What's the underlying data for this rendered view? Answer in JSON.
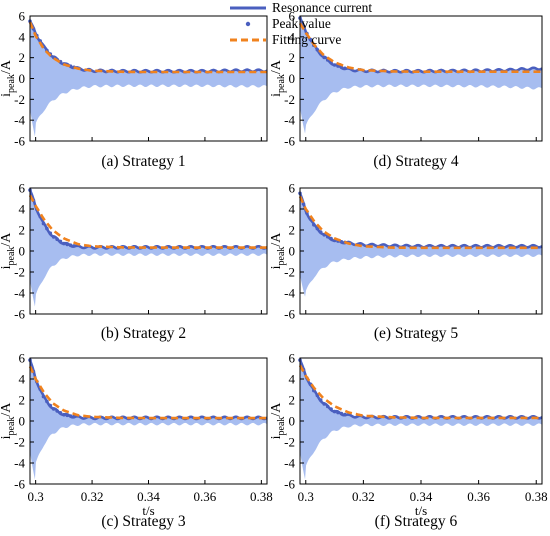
{
  "legend": {
    "items": [
      {
        "label": "Resonance current",
        "style": "line",
        "color": "#4a5fbf"
      },
      {
        "label": "Peak value",
        "style": "dots",
        "color": "#4a5fbf"
      },
      {
        "label": "Fitting curve",
        "style": "dashed",
        "color": "#f0821e"
      }
    ]
  },
  "axis": {
    "ylabel_main": "i",
    "ylabel_sub": "peak",
    "ylabel_unit": "/A",
    "xlabel": "t/s",
    "yticks": [
      "6",
      "4",
      "2",
      "0",
      "-2",
      "-4",
      "-6"
    ],
    "xticks": [
      "0.3",
      "0.32",
      "0.34",
      "0.36",
      "0.38"
    ]
  },
  "colors": {
    "fill": "#a7bdf0",
    "resonance_line": "#4a5fbf",
    "peak_dots": "#4a5fbf",
    "fitting_curve": "#f0821e"
  },
  "chart_data": [
    {
      "type": "line",
      "caption": "(a) Strategy 1",
      "xlim": [
        0.298,
        0.382
      ],
      "ylim": [
        -6,
        6
      ],
      "series": [
        {
          "name": "Resonance current",
          "note": "envelope",
          "x": [
            0.298,
            0.3,
            0.303,
            0.306,
            0.31,
            0.315,
            0.32,
            0.33,
            0.34,
            0.35,
            0.36,
            0.37,
            0.38
          ],
          "y": [
            5.5,
            4.3,
            3.0,
            2.1,
            1.4,
            0.95,
            0.75,
            0.7,
            0.7,
            0.7,
            0.7,
            0.75,
            0.75
          ]
        },
        {
          "name": "Fitting curve",
          "x": [
            0.298,
            0.3,
            0.303,
            0.306,
            0.31,
            0.315,
            0.32,
            0.33,
            0.34,
            0.35,
            0.36,
            0.37,
            0.38
          ],
          "y": [
            5.4,
            4.1,
            2.8,
            2.0,
            1.35,
            0.95,
            0.75,
            0.65,
            0.62,
            0.62,
            0.62,
            0.62,
            0.62
          ]
        }
      ]
    },
    {
      "type": "line",
      "caption": "(b) Strategy 2",
      "xlim": [
        0.298,
        0.382
      ],
      "ylim": [
        -6,
        6
      ],
      "series": [
        {
          "name": "Resonance current",
          "note": "envelope",
          "x": [
            0.298,
            0.3,
            0.303,
            0.306,
            0.31,
            0.315,
            0.32,
            0.33,
            0.34,
            0.35,
            0.36,
            0.37,
            0.38
          ],
          "y": [
            5.8,
            4.2,
            2.5,
            1.4,
            0.7,
            0.4,
            0.35,
            0.35,
            0.35,
            0.35,
            0.35,
            0.35,
            0.35
          ]
        },
        {
          "name": "Fitting curve",
          "x": [
            0.298,
            0.3,
            0.303,
            0.306,
            0.31,
            0.315,
            0.32,
            0.33,
            0.34,
            0.35,
            0.36,
            0.37,
            0.38
          ],
          "y": [
            5.3,
            4.3,
            3.0,
            2.0,
            1.2,
            0.65,
            0.45,
            0.35,
            0.32,
            0.32,
            0.32,
            0.32,
            0.32
          ]
        }
      ]
    },
    {
      "type": "line",
      "caption": "(c) Strategy 3",
      "xlim": [
        0.298,
        0.382
      ],
      "ylim": [
        -6,
        6
      ],
      "series": [
        {
          "name": "Resonance current",
          "note": "envelope",
          "x": [
            0.298,
            0.3,
            0.303,
            0.306,
            0.31,
            0.315,
            0.32,
            0.33,
            0.34,
            0.35,
            0.36,
            0.37,
            0.38
          ],
          "y": [
            5.8,
            4.0,
            2.2,
            1.2,
            0.6,
            0.35,
            0.3,
            0.3,
            0.3,
            0.3,
            0.3,
            0.3,
            0.3
          ]
        },
        {
          "name": "Fitting curve",
          "x": [
            0.298,
            0.3,
            0.303,
            0.306,
            0.31,
            0.315,
            0.32,
            0.33,
            0.34,
            0.35,
            0.36,
            0.37,
            0.38
          ],
          "y": [
            5.2,
            4.0,
            2.7,
            1.7,
            1.0,
            0.55,
            0.4,
            0.3,
            0.28,
            0.28,
            0.28,
            0.28,
            0.28
          ]
        }
      ]
    },
    {
      "type": "line",
      "caption": "(d) Strategy 4",
      "xlim": [
        0.298,
        0.382
      ],
      "ylim": [
        -6,
        6
      ],
      "series": [
        {
          "name": "Resonance current",
          "note": "envelope",
          "x": [
            0.298,
            0.3,
            0.303,
            0.306,
            0.31,
            0.315,
            0.32,
            0.33,
            0.34,
            0.35,
            0.36,
            0.37,
            0.38
          ],
          "y": [
            5.8,
            4.5,
            3.1,
            2.1,
            1.3,
            0.85,
            0.75,
            0.7,
            0.7,
            0.72,
            0.75,
            0.8,
            0.95
          ]
        },
        {
          "name": "Fitting curve",
          "x": [
            0.298,
            0.3,
            0.303,
            0.306,
            0.31,
            0.315,
            0.32,
            0.33,
            0.34,
            0.35,
            0.36,
            0.37,
            0.38
          ],
          "y": [
            5.3,
            4.4,
            3.2,
            2.3,
            1.55,
            1.05,
            0.8,
            0.68,
            0.65,
            0.65,
            0.65,
            0.65,
            0.65
          ]
        }
      ]
    },
    {
      "type": "line",
      "caption": "(e) Strategy 5",
      "xlim": [
        0.298,
        0.382
      ],
      "ylim": [
        -6,
        6
      ],
      "series": [
        {
          "name": "Resonance current",
          "note": "envelope",
          "x": [
            0.298,
            0.3,
            0.303,
            0.306,
            0.31,
            0.315,
            0.32,
            0.33,
            0.34,
            0.35,
            0.36,
            0.37,
            0.38
          ],
          "y": [
            5.5,
            3.8,
            2.4,
            1.6,
            1.0,
            0.75,
            0.6,
            0.5,
            0.45,
            0.45,
            0.45,
            0.45,
            0.45
          ]
        },
        {
          "name": "Fitting curve",
          "x": [
            0.298,
            0.3,
            0.303,
            0.306,
            0.31,
            0.315,
            0.32,
            0.33,
            0.34,
            0.35,
            0.36,
            0.37,
            0.38
          ],
          "y": [
            5.2,
            4.0,
            2.8,
            1.9,
            1.2,
            0.7,
            0.45,
            0.32,
            0.3,
            0.3,
            0.3,
            0.3,
            0.3
          ]
        }
      ]
    },
    {
      "type": "line",
      "caption": "(f) Strategy 6",
      "xlim": [
        0.298,
        0.382
      ],
      "ylim": [
        -6,
        6
      ],
      "series": [
        {
          "name": "Resonance current",
          "note": "envelope",
          "x": [
            0.298,
            0.3,
            0.303,
            0.306,
            0.31,
            0.315,
            0.32,
            0.33,
            0.34,
            0.35,
            0.36,
            0.37,
            0.38
          ],
          "y": [
            5.8,
            4.3,
            2.8,
            1.7,
            0.9,
            0.5,
            0.38,
            0.35,
            0.35,
            0.35,
            0.35,
            0.35,
            0.35
          ]
        },
        {
          "name": "Fitting curve",
          "x": [
            0.298,
            0.3,
            0.303,
            0.306,
            0.31,
            0.315,
            0.32,
            0.33,
            0.34,
            0.35,
            0.36,
            0.37,
            0.38
          ],
          "y": [
            5.3,
            4.3,
            3.1,
            2.2,
            1.4,
            0.8,
            0.5,
            0.35,
            0.3,
            0.3,
            0.3,
            0.3,
            0.3
          ]
        }
      ]
    }
  ]
}
